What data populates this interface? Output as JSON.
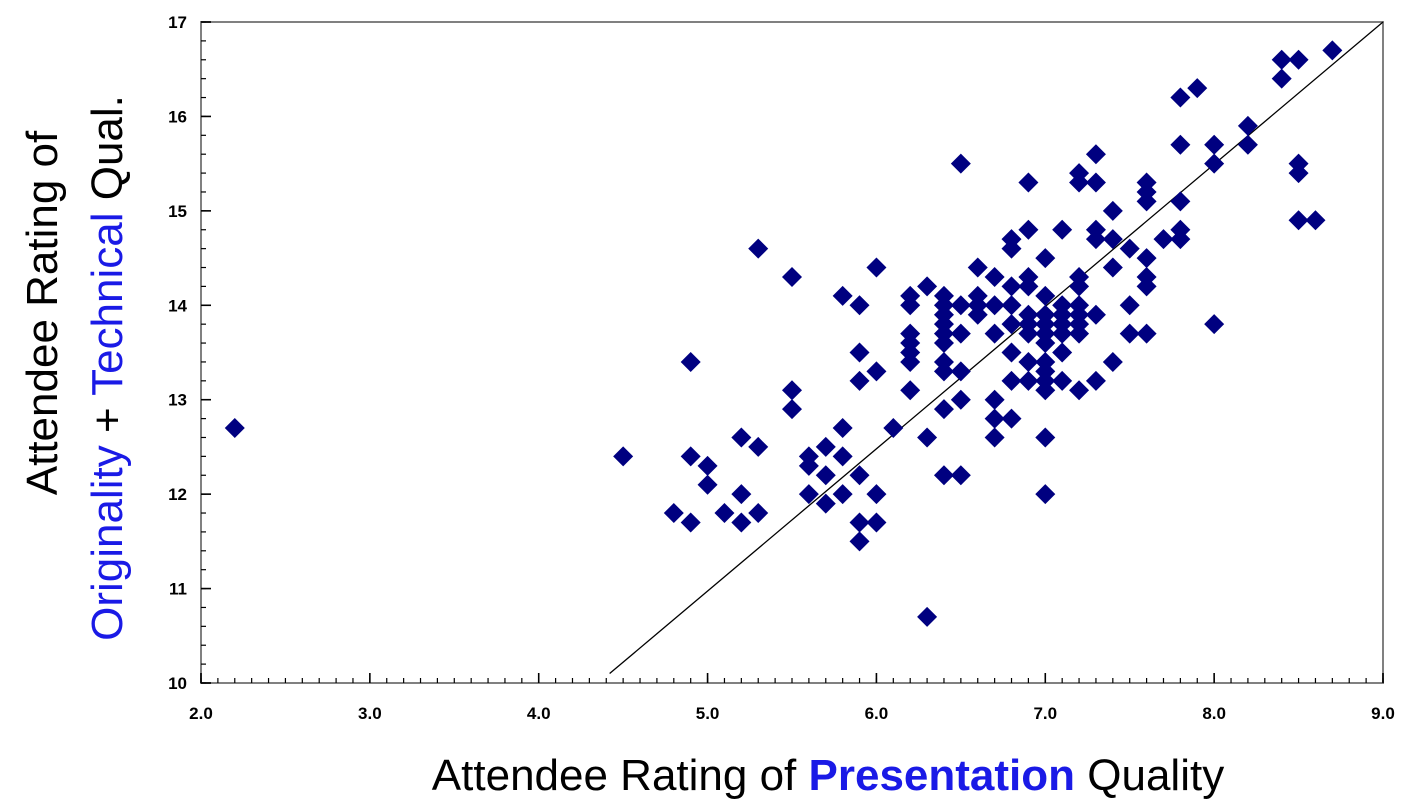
{
  "chart_data": {
    "type": "scatter",
    "title": "",
    "xlabel": {
      "prefix": "Attendee Rating of ",
      "highlight": "Presentation",
      "suffix": " Quality"
    },
    "ylabel": {
      "line1": "Attendee Rating of",
      "highlight1": "Originality",
      "middle": " + ",
      "highlight2": "Technical",
      "suffix": " Qual."
    },
    "xlim": [
      2.0,
      9.0
    ],
    "ylim": [
      10,
      17
    ],
    "xticks": [
      "2.0",
      "3.0",
      "4.0",
      "5.0",
      "6.0",
      "7.0",
      "8.0",
      "9.0"
    ],
    "yticks": [
      "10",
      "11",
      "12",
      "13",
      "14",
      "15",
      "16",
      "17"
    ],
    "grid": false,
    "legend": "none",
    "marker": "diamond",
    "colors": {
      "points": "#000080",
      "line": "#000000",
      "highlight": "#1a1ae6",
      "frame": "#808080"
    },
    "reference_line": {
      "x": [
        4.42,
        9.0
      ],
      "y": [
        10.1,
        17.0
      ]
    },
    "points": [
      [
        2.2,
        12.7
      ],
      [
        4.5,
        12.4
      ],
      [
        4.8,
        11.8
      ],
      [
        4.9,
        11.7
      ],
      [
        4.9,
        12.4
      ],
      [
        4.9,
        13.4
      ],
      [
        5.0,
        12.3
      ],
      [
        5.0,
        12.1
      ],
      [
        5.1,
        11.8
      ],
      [
        5.2,
        12.6
      ],
      [
        5.2,
        12.0
      ],
      [
        5.2,
        11.7
      ],
      [
        5.3,
        12.5
      ],
      [
        5.3,
        11.8
      ],
      [
        5.3,
        14.6
      ],
      [
        5.5,
        14.3
      ],
      [
        5.5,
        13.1
      ],
      [
        5.5,
        12.9
      ],
      [
        5.6,
        12.4
      ],
      [
        5.6,
        12.3
      ],
      [
        5.6,
        12.0
      ],
      [
        5.7,
        12.5
      ],
      [
        5.7,
        12.2
      ],
      [
        5.7,
        11.9
      ],
      [
        5.8,
        14.1
      ],
      [
        5.8,
        12.7
      ],
      [
        5.8,
        12.4
      ],
      [
        5.8,
        12.0
      ],
      [
        5.9,
        14.0
      ],
      [
        5.9,
        13.5
      ],
      [
        5.9,
        13.2
      ],
      [
        5.9,
        12.2
      ],
      [
        5.9,
        11.7
      ],
      [
        5.9,
        11.5
      ],
      [
        6.0,
        14.4
      ],
      [
        6.0,
        13.3
      ],
      [
        6.0,
        12.0
      ],
      [
        6.0,
        11.7
      ],
      [
        6.1,
        12.7
      ],
      [
        6.2,
        14.1
      ],
      [
        6.2,
        14.0
      ],
      [
        6.2,
        13.7
      ],
      [
        6.2,
        13.6
      ],
      [
        6.2,
        13.5
      ],
      [
        6.2,
        13.4
      ],
      [
        6.2,
        13.1
      ],
      [
        6.3,
        14.2
      ],
      [
        6.3,
        12.6
      ],
      [
        6.3,
        10.7
      ],
      [
        6.4,
        14.1
      ],
      [
        6.4,
        14.0
      ],
      [
        6.4,
        13.9
      ],
      [
        6.4,
        13.8
      ],
      [
        6.4,
        13.7
      ],
      [
        6.4,
        13.6
      ],
      [
        6.4,
        13.4
      ],
      [
        6.4,
        13.3
      ],
      [
        6.4,
        12.9
      ],
      [
        6.4,
        12.2
      ],
      [
        6.5,
        15.5
      ],
      [
        6.5,
        14.0
      ],
      [
        6.5,
        13.7
      ],
      [
        6.5,
        13.3
      ],
      [
        6.5,
        13.0
      ],
      [
        6.5,
        12.2
      ],
      [
        6.6,
        14.4
      ],
      [
        6.6,
        14.1
      ],
      [
        6.6,
        14.0
      ],
      [
        6.6,
        13.9
      ],
      [
        6.7,
        14.3
      ],
      [
        6.7,
        14.0
      ],
      [
        6.7,
        13.7
      ],
      [
        6.7,
        13.0
      ],
      [
        6.7,
        12.8
      ],
      [
        6.7,
        12.6
      ],
      [
        6.8,
        14.7
      ],
      [
        6.8,
        14.6
      ],
      [
        6.8,
        14.2
      ],
      [
        6.8,
        14.0
      ],
      [
        6.8,
        13.8
      ],
      [
        6.8,
        13.5
      ],
      [
        6.8,
        13.2
      ],
      [
        6.8,
        12.8
      ],
      [
        6.9,
        15.3
      ],
      [
        6.9,
        14.8
      ],
      [
        6.9,
        14.3
      ],
      [
        6.9,
        14.2
      ],
      [
        6.9,
        13.9
      ],
      [
        6.9,
        13.8
      ],
      [
        6.9,
        13.7
      ],
      [
        6.9,
        13.4
      ],
      [
        6.9,
        13.2
      ],
      [
        7.0,
        14.5
      ],
      [
        7.0,
        14.1
      ],
      [
        7.0,
        13.9
      ],
      [
        7.0,
        13.8
      ],
      [
        7.0,
        13.7
      ],
      [
        7.0,
        13.6
      ],
      [
        7.0,
        13.4
      ],
      [
        7.0,
        13.3
      ],
      [
        7.0,
        13.2
      ],
      [
        7.0,
        13.1
      ],
      [
        7.0,
        12.6
      ],
      [
        7.0,
        12.0
      ],
      [
        7.1,
        14.8
      ],
      [
        7.1,
        14.0
      ],
      [
        7.1,
        13.9
      ],
      [
        7.1,
        13.8
      ],
      [
        7.1,
        13.7
      ],
      [
        7.1,
        13.5
      ],
      [
        7.1,
        13.2
      ],
      [
        7.2,
        15.4
      ],
      [
        7.2,
        15.3
      ],
      [
        7.2,
        14.3
      ],
      [
        7.2,
        14.2
      ],
      [
        7.2,
        14.0
      ],
      [
        7.2,
        13.9
      ],
      [
        7.2,
        13.8
      ],
      [
        7.2,
        13.7
      ],
      [
        7.2,
        13.1
      ],
      [
        7.3,
        15.6
      ],
      [
        7.3,
        15.3
      ],
      [
        7.3,
        14.8
      ],
      [
        7.3,
        14.7
      ],
      [
        7.3,
        13.9
      ],
      [
        7.3,
        13.2
      ],
      [
        7.4,
        15.0
      ],
      [
        7.4,
        14.7
      ],
      [
        7.4,
        14.4
      ],
      [
        7.4,
        13.4
      ],
      [
        7.5,
        14.6
      ],
      [
        7.5,
        14.0
      ],
      [
        7.5,
        13.7
      ],
      [
        7.6,
        15.3
      ],
      [
        7.6,
        15.2
      ],
      [
        7.6,
        15.1
      ],
      [
        7.6,
        14.5
      ],
      [
        7.6,
        14.3
      ],
      [
        7.6,
        14.2
      ],
      [
        7.6,
        13.7
      ],
      [
        7.7,
        14.7
      ],
      [
        7.8,
        16.2
      ],
      [
        7.8,
        15.7
      ],
      [
        7.8,
        15.1
      ],
      [
        7.8,
        14.8
      ],
      [
        7.8,
        14.7
      ],
      [
        7.9,
        16.3
      ],
      [
        8.0,
        15.7
      ],
      [
        8.0,
        15.5
      ],
      [
        8.0,
        13.8
      ],
      [
        8.2,
        15.9
      ],
      [
        8.2,
        15.7
      ],
      [
        8.4,
        16.6
      ],
      [
        8.4,
        16.4
      ],
      [
        8.5,
        16.6
      ],
      [
        8.5,
        15.5
      ],
      [
        8.5,
        15.4
      ],
      [
        8.5,
        14.9
      ],
      [
        8.6,
        14.9
      ],
      [
        8.7,
        16.7
      ]
    ]
  }
}
